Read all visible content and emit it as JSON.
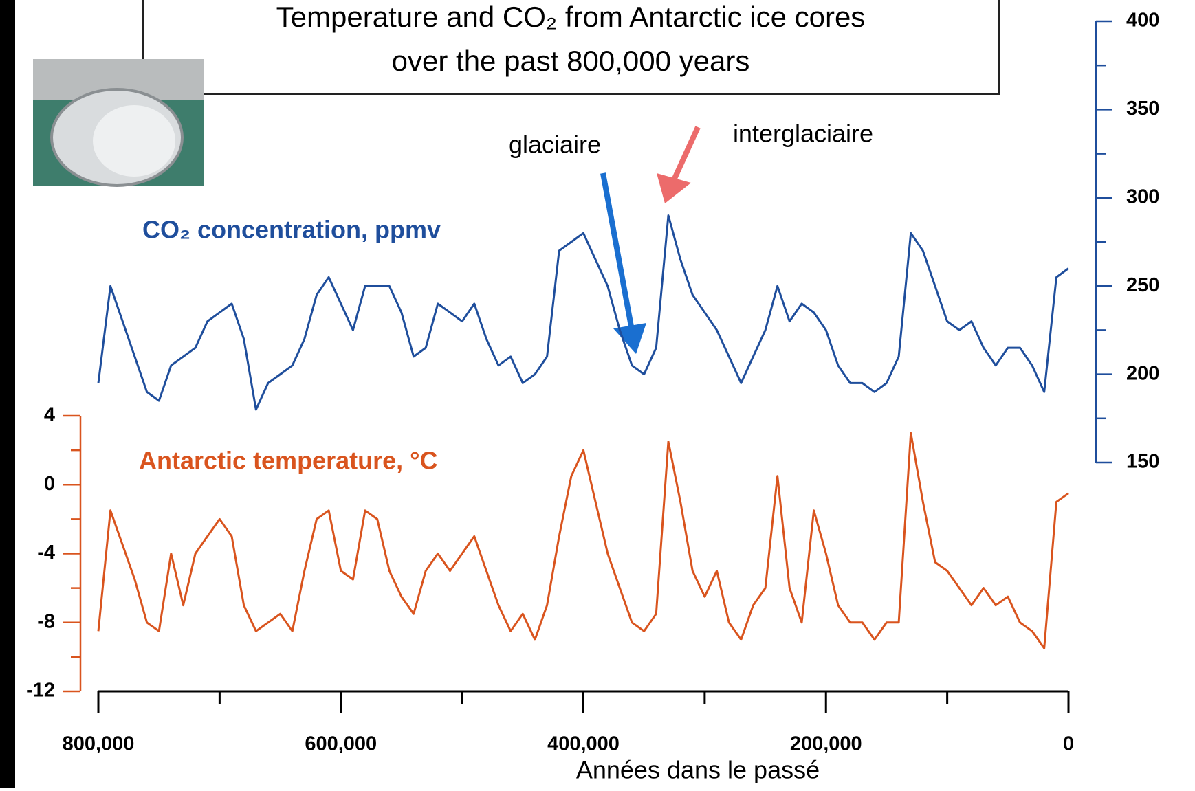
{
  "chart_data": {
    "type": "line",
    "title": [
      "Temperature and CO₂ from Antarctic ice cores",
      "over the past 800,000 years"
    ],
    "xlabel": "Années dans le passé",
    "annotations": [
      "glaciaire",
      "interglaciaire"
    ],
    "x": [
      800000,
      790000,
      780000,
      770000,
      760000,
      750000,
      740000,
      730000,
      720000,
      710000,
      700000,
      690000,
      680000,
      670000,
      660000,
      650000,
      640000,
      630000,
      620000,
      610000,
      600000,
      590000,
      580000,
      570000,
      560000,
      550000,
      540000,
      530000,
      520000,
      510000,
      500000,
      490000,
      480000,
      470000,
      460000,
      450000,
      440000,
      430000,
      420000,
      410000,
      400000,
      390000,
      380000,
      370000,
      360000,
      350000,
      340000,
      330000,
      320000,
      310000,
      300000,
      290000,
      280000,
      270000,
      260000,
      250000,
      240000,
      230000,
      220000,
      210000,
      200000,
      190000,
      180000,
      170000,
      160000,
      150000,
      140000,
      130000,
      120000,
      110000,
      100000,
      90000,
      80000,
      70000,
      60000,
      50000,
      40000,
      30000,
      20000,
      10000,
      0
    ],
    "xlim": [
      800000,
      0
    ],
    "xticks": [
      {
        "value": 800000,
        "label": "800,000"
      },
      {
        "value": 600000,
        "label": "600,000"
      },
      {
        "value": 400000,
        "label": "400,000"
      },
      {
        "value": 200000,
        "label": "200,000"
      },
      0
    ],
    "xticks_minor": [
      700000,
      500000,
      300000,
      100000
    ],
    "ylim": [
      -12,
      4
    ],
    "yticks": [
      4,
      0,
      -4,
      -8,
      -12
    ],
    "yticks_minor": [
      2,
      -2,
      -6,
      -10
    ],
    "y2lim": [
      150,
      400
    ],
    "y2ticks": [
      150,
      200,
      250,
      300,
      350,
      400
    ],
    "y2ticks_minor": [
      175,
      225,
      275,
      325,
      375
    ],
    "series": [
      {
        "name": "CO₂ concentration, ppmv",
        "color": "#1f4e9c",
        "axis": "y2",
        "values": [
          195,
          250,
          230,
          210,
          190,
          185,
          205,
          210,
          215,
          230,
          235,
          240,
          220,
          180,
          195,
          200,
          205,
          220,
          245,
          255,
          240,
          225,
          250,
          250,
          250,
          235,
          210,
          215,
          240,
          235,
          230,
          240,
          220,
          205,
          210,
          195,
          200,
          210,
          270,
          275,
          280,
          265,
          250,
          225,
          205,
          200,
          215,
          290,
          265,
          245,
          235,
          225,
          210,
          195,
          210,
          225,
          250,
          230,
          240,
          235,
          225,
          205,
          195,
          195,
          190,
          195,
          210,
          280,
          270,
          250,
          230,
          225,
          230,
          215,
          205,
          215,
          215,
          205,
          190,
          255,
          260
        ]
      },
      {
        "name": "Antarctic temperature, °C",
        "color": "#d9541e",
        "axis": "y",
        "values": [
          -8.5,
          -1.5,
          -3.5,
          -5.5,
          -8,
          -8.5,
          -4,
          -7,
          -4,
          -3,
          -2,
          -3,
          -7,
          -8.5,
          -8,
          -7.5,
          -8.5,
          -5,
          -2,
          -1.5,
          -5,
          -5.5,
          -1.5,
          -2,
          -5,
          -6.5,
          -7.5,
          -5,
          -4,
          -5,
          -4,
          -3,
          -5,
          -7,
          -8.5,
          -7.5,
          -9,
          -7,
          -3,
          0.5,
          2,
          -1,
          -4,
          -6,
          -8,
          -8.5,
          -7.5,
          2.5,
          -1,
          -5,
          -6.5,
          -5,
          -8,
          -9,
          -7,
          -6,
          0.5,
          -6,
          -8,
          -1.5,
          -4,
          -7,
          -8,
          -8,
          -9,
          -8,
          -8,
          3,
          -1,
          -4.5,
          -5,
          -6,
          -7,
          -6,
          -7,
          -6.5,
          -8,
          -8.5,
          -9.5,
          -1,
          -0.5
        ]
      }
    ]
  }
}
